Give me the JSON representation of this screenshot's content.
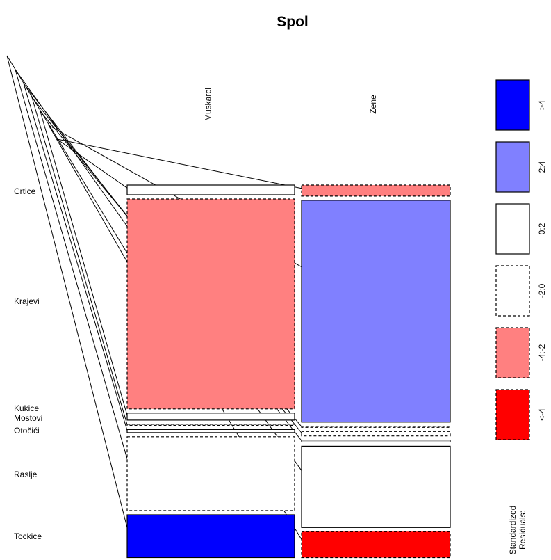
{
  "chart_data": {
    "type": "mosaic",
    "title": "Spol",
    "column_variable": "Spol",
    "columns": [
      "Muskarci",
      "Zene"
    ],
    "rows": [
      "Crtice",
      "Krajevi",
      "Kukice",
      "Mostovi",
      "Otočići",
      "Raslje",
      "Tockice"
    ],
    "cells": [
      {
        "row": "Crtice",
        "col": "Muskarci",
        "share": 0.025,
        "residual_class": "0:2"
      },
      {
        "row": "Crtice",
        "col": "Zene",
        "share": 0.03,
        "residual_class": "-4:-2"
      },
      {
        "row": "Krajevi",
        "col": "Muskarci",
        "share": 0.54,
        "residual_class": "-4:-2"
      },
      {
        "row": "Krajevi",
        "col": "Zene",
        "share": 0.6,
        "residual_class": "2:4"
      },
      {
        "row": "Kukice",
        "col": "Muskarci",
        "share": 0.018,
        "residual_class": "0:2"
      },
      {
        "row": "Kukice",
        "col": "Zene",
        "share": 0.0,
        "residual_class": "-2:0"
      },
      {
        "row": "Mostovi",
        "col": "Muskarci",
        "share": 0.0,
        "residual_class": "-2:0"
      },
      {
        "row": "Mostovi",
        "col": "Zene",
        "share": 0.012,
        "residual_class": "-2:0"
      },
      {
        "row": "Otočići",
        "col": "Muskarci",
        "share": 0.008,
        "residual_class": "0:2"
      },
      {
        "row": "Otočići",
        "col": "Zene",
        "share": 0.005,
        "residual_class": "0:2"
      },
      {
        "row": "Raslje",
        "col": "Muskarci",
        "share": 0.19,
        "residual_class": "-2:0"
      },
      {
        "row": "Raslje",
        "col": "Zene",
        "share": 0.22,
        "residual_class": "0:2"
      },
      {
        "row": "Tockice",
        "col": "Muskarci",
        "share": 0.11,
        "residual_class": ">4"
      },
      {
        "row": "Tockice",
        "col": "Zene",
        "share": 0.07,
        "residual_class": "<-4"
      }
    ],
    "legend": {
      "title": "Standardized\nResiduals:",
      "placement": "right",
      "entries": [
        {
          "label": ">4",
          "color": "#0000ff",
          "dashed": false
        },
        {
          "label": "2:4",
          "color": "#8080ff",
          "dashed": false
        },
        {
          "label": "0:2",
          "color": "#ffffff",
          "dashed": false
        },
        {
          "label": "-2:0",
          "color": "#ffffff",
          "dashed": true
        },
        {
          "label": "-4:-2",
          "color": "#ff8080",
          "dashed": true
        },
        {
          "label": "<-4",
          "color": "#ff0000",
          "dashed": true
        }
      ]
    }
  }
}
